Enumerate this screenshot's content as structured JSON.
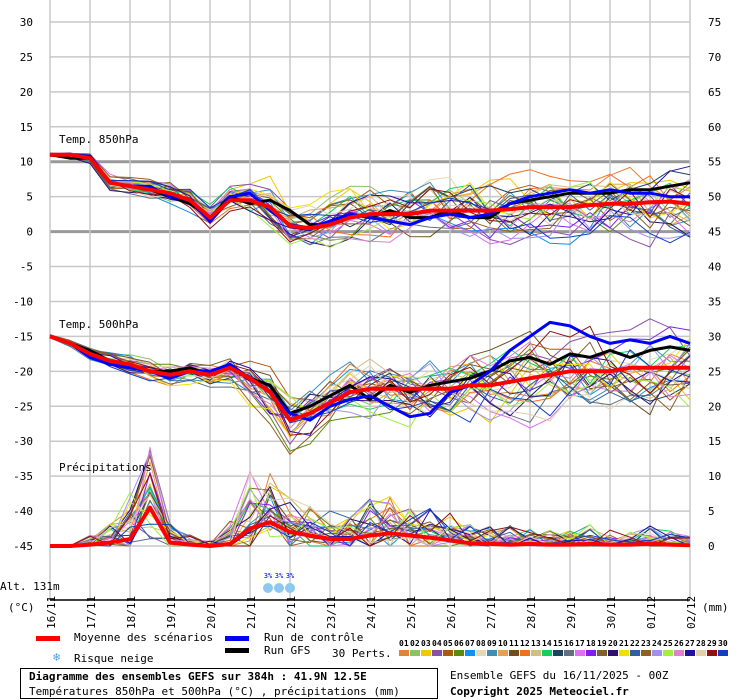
{
  "chart_data": {
    "type": "line",
    "title": "Diagramme des ensembles GEFS sur 384h : 41.9N 12.5E",
    "subtitle": "Températures 850hPa et 500hPa (°C) , précipitations (mm)",
    "left_axis": {
      "label": "(°C)",
      "ticks": [
        30,
        25,
        20,
        15,
        10,
        5,
        0,
        -5,
        -10,
        -15,
        -20,
        -25,
        -30,
        -35,
        -40,
        -45
      ],
      "range": [
        -45,
        30
      ]
    },
    "right_axis": {
      "label": "(mm)",
      "ticks": [
        75,
        70,
        65,
        60,
        55,
        50,
        45,
        40,
        35,
        30,
        25,
        20,
        15,
        10,
        5,
        0
      ],
      "range": [
        0,
        75
      ]
    },
    "x_ticks": [
      "16/11",
      "17/11",
      "18/11",
      "19/11",
      "20/11",
      "21/11",
      "22/11",
      "23/11",
      "24/11",
      "25/11",
      "26/11",
      "27/11",
      "28/11",
      "29/11",
      "30/11",
      "01/12",
      "02/12"
    ],
    "x_step_hours": 12,
    "panel_labels": {
      "t850": "Temp. 850hPa",
      "t500": "Temp. 500hPa",
      "precip": "Précipitations"
    },
    "series": {
      "t850_mean": [
        11,
        11,
        10.5,
        7,
        6.5,
        6,
        5.5,
        4.5,
        2,
        4.5,
        4.5,
        3.5,
        0.8,
        0.5,
        1,
        2,
        2.5,
        2.5,
        2.5,
        3,
        3,
        3,
        3,
        3.2,
        3.5,
        3.5,
        3.5,
        3.8,
        4,
        4,
        4.2,
        4.3,
        4
      ],
      "t850_control": [
        11,
        11,
        10.8,
        7,
        6.5,
        6.5,
        5,
        4.5,
        1.5,
        5,
        5.5,
        3,
        1,
        0.5,
        1.5,
        2.5,
        2,
        1.5,
        1,
        2,
        2.5,
        2,
        2.5,
        4,
        5,
        5.5,
        6,
        5.5,
        6,
        5.5,
        5.5,
        5,
        5
      ],
      "t850_gfs": [
        11,
        10.5,
        10.5,
        7,
        6.5,
        6,
        5,
        4,
        2,
        5,
        4,
        4.5,
        3,
        1,
        1,
        2.5,
        2,
        3,
        2,
        2,
        3,
        2,
        2,
        4,
        4.5,
        5,
        5.5,
        5.5,
        5.5,
        6,
        6,
        6.5,
        7
      ],
      "t500_mean": [
        -15,
        -16,
        -17.5,
        -18.5,
        -19,
        -20,
        -20.5,
        -20,
        -20.5,
        -19.5,
        -21,
        -23,
        -27,
        -26,
        -24.5,
        -23,
        -22.5,
        -22.5,
        -22.5,
        -22.5,
        -22.5,
        -22,
        -22,
        -21.5,
        -21,
        -20.5,
        -20,
        -20,
        -20,
        -19.5,
        -19.5,
        -19.5,
        -19.5
      ],
      "t500_control": [
        -15,
        -16,
        -18,
        -19,
        -19.5,
        -20,
        -21,
        -20,
        -20,
        -19,
        -21,
        -23,
        -26,
        -27,
        -25,
        -24,
        -23.5,
        -25,
        -26.5,
        -26,
        -23,
        -22,
        -20,
        -17,
        -15,
        -13,
        -13.5,
        -15,
        -16,
        -15.5,
        -16,
        -15,
        -16
      ],
      "t500_gfs": [
        -15,
        -16,
        -17,
        -18.5,
        -19,
        -20,
        -20,
        -19.5,
        -20.5,
        -19.5,
        -21,
        -22,
        -26,
        -25,
        -23.5,
        -22,
        -24,
        -22,
        -23,
        -22,
        -21.5,
        -21,
        -20,
        -18.5,
        -18,
        -19,
        -17.5,
        -18,
        -17,
        -18,
        -17,
        -16.5,
        -17
      ],
      "precip_mean_mm": [
        0,
        0,
        0.2,
        0.5,
        1,
        5.5,
        0.5,
        0.2,
        0,
        0.3,
        2.5,
        3.4,
        2,
        1.5,
        1,
        1,
        1.5,
        1.8,
        1.5,
        1.2,
        0.8,
        0.4,
        0.3,
        0.2,
        0.3,
        0.2,
        0.2,
        0.3,
        0.2,
        0.2,
        0.3,
        0.2,
        0.1
      ],
      "spread_850": [
        0.3,
        0.4,
        0.6,
        1,
        1,
        1,
        1.2,
        1.5,
        1.5,
        1.5,
        2,
        3,
        2.5,
        2.5,
        3,
        3,
        3,
        3.2,
        3.2,
        3.5,
        3.5,
        3.5,
        3.8,
        3.8,
        4,
        4,
        4,
        4.2,
        4.2,
        4.2,
        4.2,
        4.2,
        4.2
      ],
      "spread_500": [
        0.3,
        0.4,
        0.7,
        1,
        1.2,
        1.3,
        1.5,
        1.5,
        1.5,
        2,
        3,
        3.5,
        3.5,
        3,
        3,
        3.2,
        3.5,
        3.8,
        4,
        4,
        4.2,
        4.5,
        4.5,
        4.5,
        4.8,
        5,
        5,
        5,
        5,
        5,
        5,
        5,
        5
      ],
      "spread_precip": [
        0,
        0,
        1,
        2,
        5,
        8,
        2,
        1,
        0.5,
        3,
        6,
        5,
        4,
        3,
        3,
        3,
        4,
        4,
        3,
        3,
        3,
        2,
        2,
        2,
        1.5,
        1.5,
        1.5,
        2,
        1.5,
        1.5,
        2,
        1.5,
        1
      ]
    },
    "snow_risk": [
      {
        "date": "21/11",
        "label": "3%"
      },
      {
        "date": "22/11",
        "label": "3%"
      },
      {
        "date": "22/11",
        "label": "3%"
      }
    ]
  },
  "altitude": "Alt. 131m",
  "legend": {
    "mean": "Moyenne des scénarios",
    "control": "Run de contrôle",
    "gfs": "Run GFS",
    "snow": "Risque neige",
    "perts": "30 Perts."
  },
  "colors": {
    "mean": "#ff0000",
    "control": "#0000ff",
    "gfs": "#000000",
    "perts": [
      "#e8803a",
      "#8fc06a",
      "#f0c800",
      "#8b4fa8",
      "#b0580f",
      "#5a8a10",
      "#1090f0",
      "#e8d8b0",
      "#3a90b8",
      "#e8a050",
      "#6a5020",
      "#f07020",
      "#d0c080",
      "#10d060",
      "#204060",
      "#607080",
      "#e070f0",
      "#8020f0",
      "#806030",
      "#301070",
      "#f0e000",
      "#3060a0",
      "#906020",
      "#a090f0",
      "#a0f040",
      "#e080d0",
      "#2010a0",
      "#e0d0b0",
      "#901010",
      "#1040c0"
    ]
  },
  "pert_numbers": [
    "01",
    "02",
    "03",
    "04",
    "05",
    "06",
    "07",
    "08",
    "09",
    "10",
    "11",
    "12",
    "13",
    "14",
    "15",
    "16",
    "17",
    "18",
    "19",
    "20",
    "21",
    "22",
    "23",
    "24",
    "25",
    "26",
    "27",
    "28",
    "29",
    "30"
  ],
  "footer": {
    "run": "Ensemble GEFS du 16/11/2025 - 00Z",
    "copyright": "Copyright 2025 Meteociel.fr"
  }
}
